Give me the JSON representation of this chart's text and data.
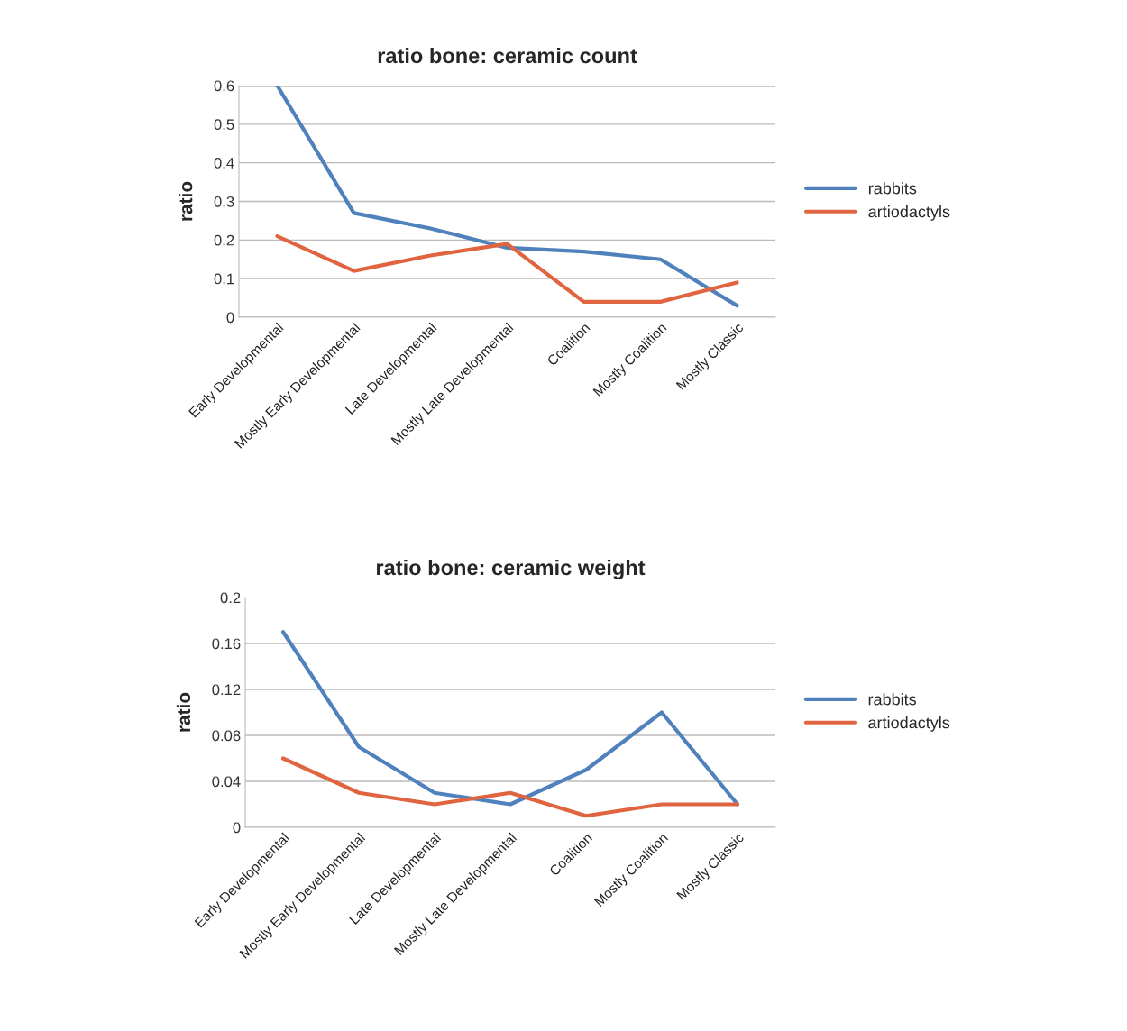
{
  "chart_data": [
    {
      "type": "line",
      "title": "ratio bone: ceramic count",
      "ylabel": "ratio",
      "categories": [
        "Early Developmental",
        "Mostly Early Developmental",
        "Late Developmental",
        "Mostly Late Developmental",
        "Coalition",
        "Mostly Coalition",
        "Mostly Classic"
      ],
      "series": [
        {
          "name": "rabbits",
          "color": "#4f81bd",
          "values": [
            0.6,
            0.27,
            0.23,
            0.18,
            0.17,
            0.15,
            0.03
          ]
        },
        {
          "name": "artiodactyls",
          "color": "#e0643f",
          "values": [
            0.21,
            0.12,
            0.16,
            0.19,
            0.04,
            0.04,
            0.09
          ]
        }
      ],
      "ylim": [
        0,
        0.6
      ],
      "yticks": [
        0,
        0.1,
        0.2,
        0.3,
        0.4,
        0.5,
        0.6
      ],
      "grid": "y",
      "legend": "right"
    },
    {
      "type": "line",
      "title": "ratio bone: ceramic weight",
      "ylabel": "ratio",
      "categories": [
        "Early Developmental",
        "Mostly Early Developmental",
        "Late Developmental",
        "Mostly Late Developmental",
        "Coalition",
        "Mostly Coalition",
        "Mostly Classic"
      ],
      "series": [
        {
          "name": "rabbits",
          "color": "#4f81bd",
          "values": [
            0.17,
            0.07,
            0.03,
            0.02,
            0.05,
            0.1,
            0.02
          ]
        },
        {
          "name": "artiodactyls",
          "color": "#e0643f",
          "values": [
            0.06,
            0.03,
            0.02,
            0.03,
            0.01,
            0.02,
            0.02
          ]
        }
      ],
      "ylim": [
        0,
        0.2
      ],
      "yticks": [
        0,
        0.04,
        0.08,
        0.12,
        0.16,
        0.2
      ],
      "grid": "y",
      "legend": "right"
    }
  ]
}
